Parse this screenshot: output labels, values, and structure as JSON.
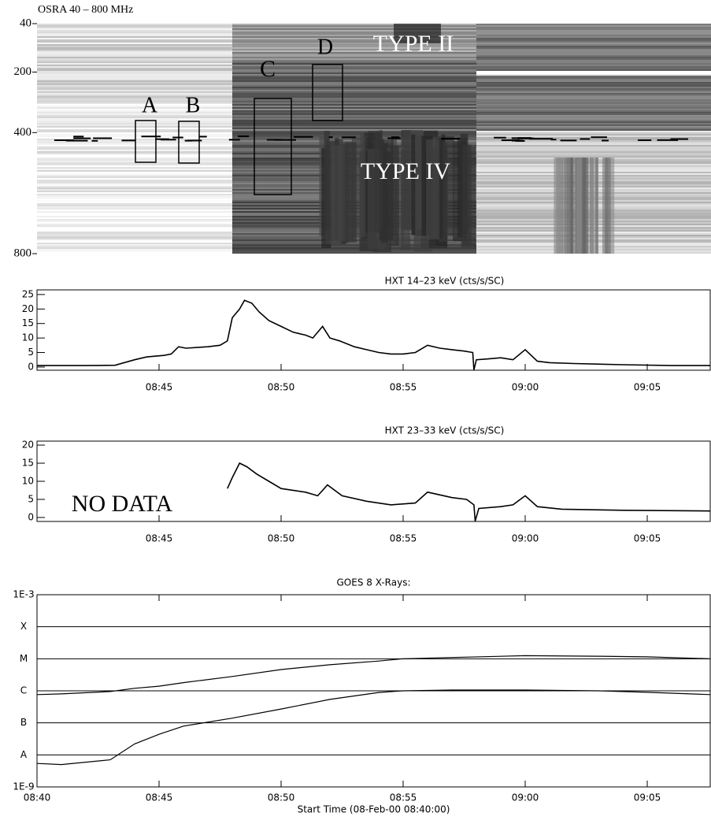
{
  "chart_data": [
    {
      "type": "spectrogram",
      "title": "OSRA 40 – 800 MHz",
      "ylim": [
        40,
        800
      ],
      "yticks": [
        40,
        200,
        400,
        800
      ],
      "y_reversed": true,
      "annotations": [
        "A",
        "B",
        "C",
        "D",
        "TYPE II",
        "TYPE IV"
      ]
    },
    {
      "type": "line",
      "title": "HXT 14–23 keV (cts/s/SC)",
      "x": [
        0,
        2,
        3.2,
        4,
        4.5,
        5.2,
        5.5,
        5.8,
        6.1,
        7,
        7.5,
        7.8,
        8.0,
        8.3,
        8.5,
        8.8,
        9.1,
        9.5,
        10,
        10.5,
        11,
        11.3,
        11.7,
        12,
        12.4,
        13,
        13.5,
        14,
        14.5,
        15,
        15.5,
        16,
        16.5,
        17,
        17.5,
        17.85,
        17.9,
        18.0,
        18.5,
        19,
        19.5,
        20,
        20.5,
        21,
        22,
        24,
        26,
        27.58
      ],
      "series": [
        {
          "color": "#000000",
          "values": [
            0.5,
            0.5,
            0.6,
            2.5,
            3.5,
            4,
            4.5,
            7,
            6.5,
            7,
            7.5,
            9,
            17,
            20,
            23,
            22,
            19,
            16,
            14,
            12,
            11,
            10,
            14,
            10,
            9,
            7,
            6,
            5,
            4.5,
            4.5,
            5,
            7.5,
            6.5,
            6,
            5.5,
            5,
            -1,
            2.5,
            2.8,
            3.2,
            2.5,
            6,
            2,
            1.5,
            1.2,
            0.8,
            0.5,
            0.5
          ]
        }
      ],
      "xlim": [
        0,
        27.58
      ],
      "xticks": [
        {
          "value": 5,
          "label": "08:45"
        },
        {
          "value": 10,
          "label": "08:50"
        },
        {
          "value": 15,
          "label": "08:55"
        },
        {
          "value": 20,
          "label": "09:00"
        },
        {
          "value": 25,
          "label": "09:05"
        }
      ],
      "ylim": [
        -1.1,
        26.6
      ],
      "yticks": [
        0,
        5,
        10,
        15,
        20,
        25
      ]
    },
    {
      "type": "line",
      "title": "HXT 23–33 keV (cts/s/SC)",
      "annotations": [
        "NO DATA"
      ],
      "x": [
        7.8,
        8.0,
        8.3,
        8.6,
        9,
        9.5,
        10,
        11,
        11.5,
        11.9,
        12.5,
        13.5,
        14.5,
        15.5,
        16,
        17,
        17.6,
        17.9,
        17.95,
        18.1,
        19,
        19.5,
        20,
        20.5,
        21.5,
        24,
        27.58
      ],
      "series": [
        {
          "color": "#000000",
          "values": [
            8,
            11,
            15,
            14,
            12,
            10,
            8,
            7,
            6,
            9,
            6,
            4.5,
            3.5,
            4,
            7,
            5.5,
            5,
            3.5,
            -1,
            2.5,
            3,
            3.5,
            6,
            3,
            2.3,
            2,
            1.8
          ]
        }
      ],
      "xlim": [
        0,
        27.58
      ],
      "xticks": [
        {
          "value": 5,
          "label": "08:45"
        },
        {
          "value": 10,
          "label": "08:50"
        },
        {
          "value": 15,
          "label": "08:55"
        },
        {
          "value": 20,
          "label": "09:00"
        },
        {
          "value": 25,
          "label": "09:05"
        }
      ],
      "ylim": [
        -1.1,
        21.1
      ],
      "yticks": [
        0,
        5,
        10,
        15,
        20
      ]
    },
    {
      "type": "line",
      "title": "GOES 8 X-Rays:",
      "xlabel": "Start Time (08-Feb-00 08:40:00)",
      "x": [
        0,
        1,
        3,
        4,
        5,
        6,
        8,
        10,
        12,
        14,
        15,
        17,
        20,
        23,
        25,
        27.58
      ],
      "series": [
        {
          "color": "#000000",
          "values": [
            7.6e-07,
            8e-07,
            9.5e-07,
            1.2e-06,
            1.4e-06,
            1.8e-06,
            2.8e-06,
            4.6e-06,
            6.5e-06,
            8.5e-06,
            1e-05,
            1.1e-05,
            1.25e-05,
            1.2e-05,
            1.15e-05,
            1e-05
          ]
        },
        {
          "color": "#000000",
          "values": [
            5.4e-09,
            5e-09,
            7e-09,
            2.2e-08,
            4.4e-08,
            7.9e-08,
            1.4e-07,
            2.7e-07,
            5.4e-07,
            8.9e-07,
            1e-06,
            1.06e-06,
            1.06e-06,
            1e-06,
            9e-07,
            7.6e-07
          ]
        }
      ],
      "xlim": [
        0,
        27.58
      ],
      "xticks": [
        {
          "value": 0,
          "label": "08:40"
        },
        {
          "value": 5,
          "label": "08:45"
        },
        {
          "value": 10,
          "label": "08:50"
        },
        {
          "value": 15,
          "label": "08:55"
        },
        {
          "value": 20,
          "label": "09:00"
        },
        {
          "value": 25,
          "label": "09:05"
        }
      ],
      "ylim": [
        1e-09,
        0.001
      ],
      "log_y": true,
      "grid": true,
      "yticks": [
        {
          "value": 0.001,
          "label": "1E-3"
        },
        {
          "value": 0.0001,
          "label": "X"
        },
        {
          "value": 1e-05,
          "label": "M"
        },
        {
          "value": 1e-06,
          "label": "C"
        },
        {
          "value": 1e-07,
          "label": "B"
        },
        {
          "value": 1e-08,
          "label": "A"
        },
        {
          "value": 1e-09,
          "label": "1E-9"
        }
      ]
    }
  ]
}
